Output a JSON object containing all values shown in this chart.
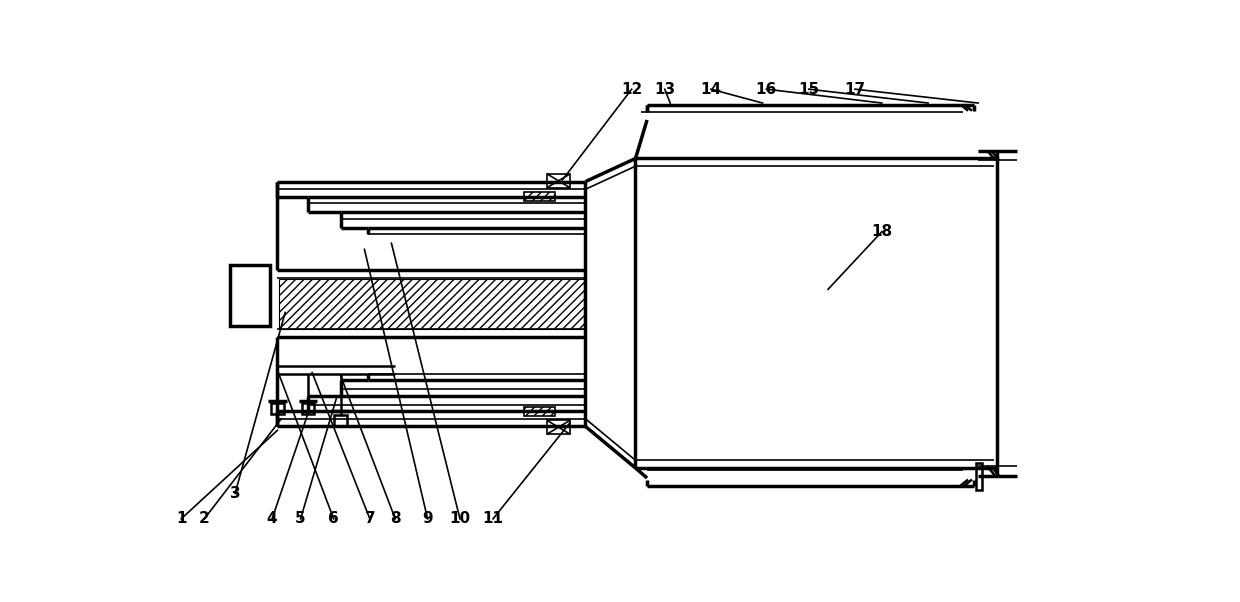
{
  "bg_color": "#ffffff",
  "line_color": "#000000",
  "figsize": [
    12.4,
    6.02
  ],
  "dpi": 100
}
